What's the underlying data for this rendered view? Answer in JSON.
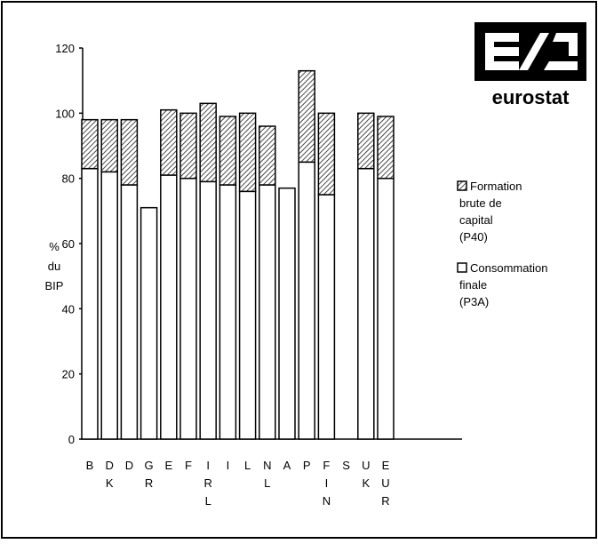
{
  "chart_data": {
    "type": "bar",
    "stacked": true,
    "categories": [
      "B",
      "DK",
      "D",
      "GR",
      "E",
      "F",
      "IRL",
      "I",
      "L",
      "NL",
      "A",
      "P",
      "FIN",
      "S",
      "UK",
      "EUR"
    ],
    "series": [
      {
        "name": "Consommation finale (P3A)",
        "values": [
          83,
          82,
          78,
          71,
          81,
          80,
          79,
          78,
          76,
          78,
          77,
          85,
          75,
          null,
          83,
          80
        ]
      },
      {
        "name": "Formation brute de capital (P40)",
        "values": [
          15,
          16,
          20,
          0,
          20,
          20,
          24,
          21,
          24,
          18,
          0,
          28,
          25,
          null,
          17,
          19
        ]
      }
    ],
    "ylabel_lines": [
      "%",
      "du",
      "BIP"
    ],
    "yticks": [
      "0",
      "20",
      "40",
      "60",
      "80",
      "100",
      "120"
    ],
    "ylim": [
      0,
      120
    ],
    "legend": {
      "placement": "right",
      "entries": [
        {
          "lines": [
            "Formation",
            "brute de",
            "capital",
            "(P40)"
          ],
          "pattern": "hatched"
        },
        {
          "lines": [
            "Consommation",
            "finale",
            "(P3A)"
          ],
          "pattern": "white"
        }
      ]
    },
    "logo": {
      "text": "eurostat",
      "mark": "E/S"
    }
  }
}
